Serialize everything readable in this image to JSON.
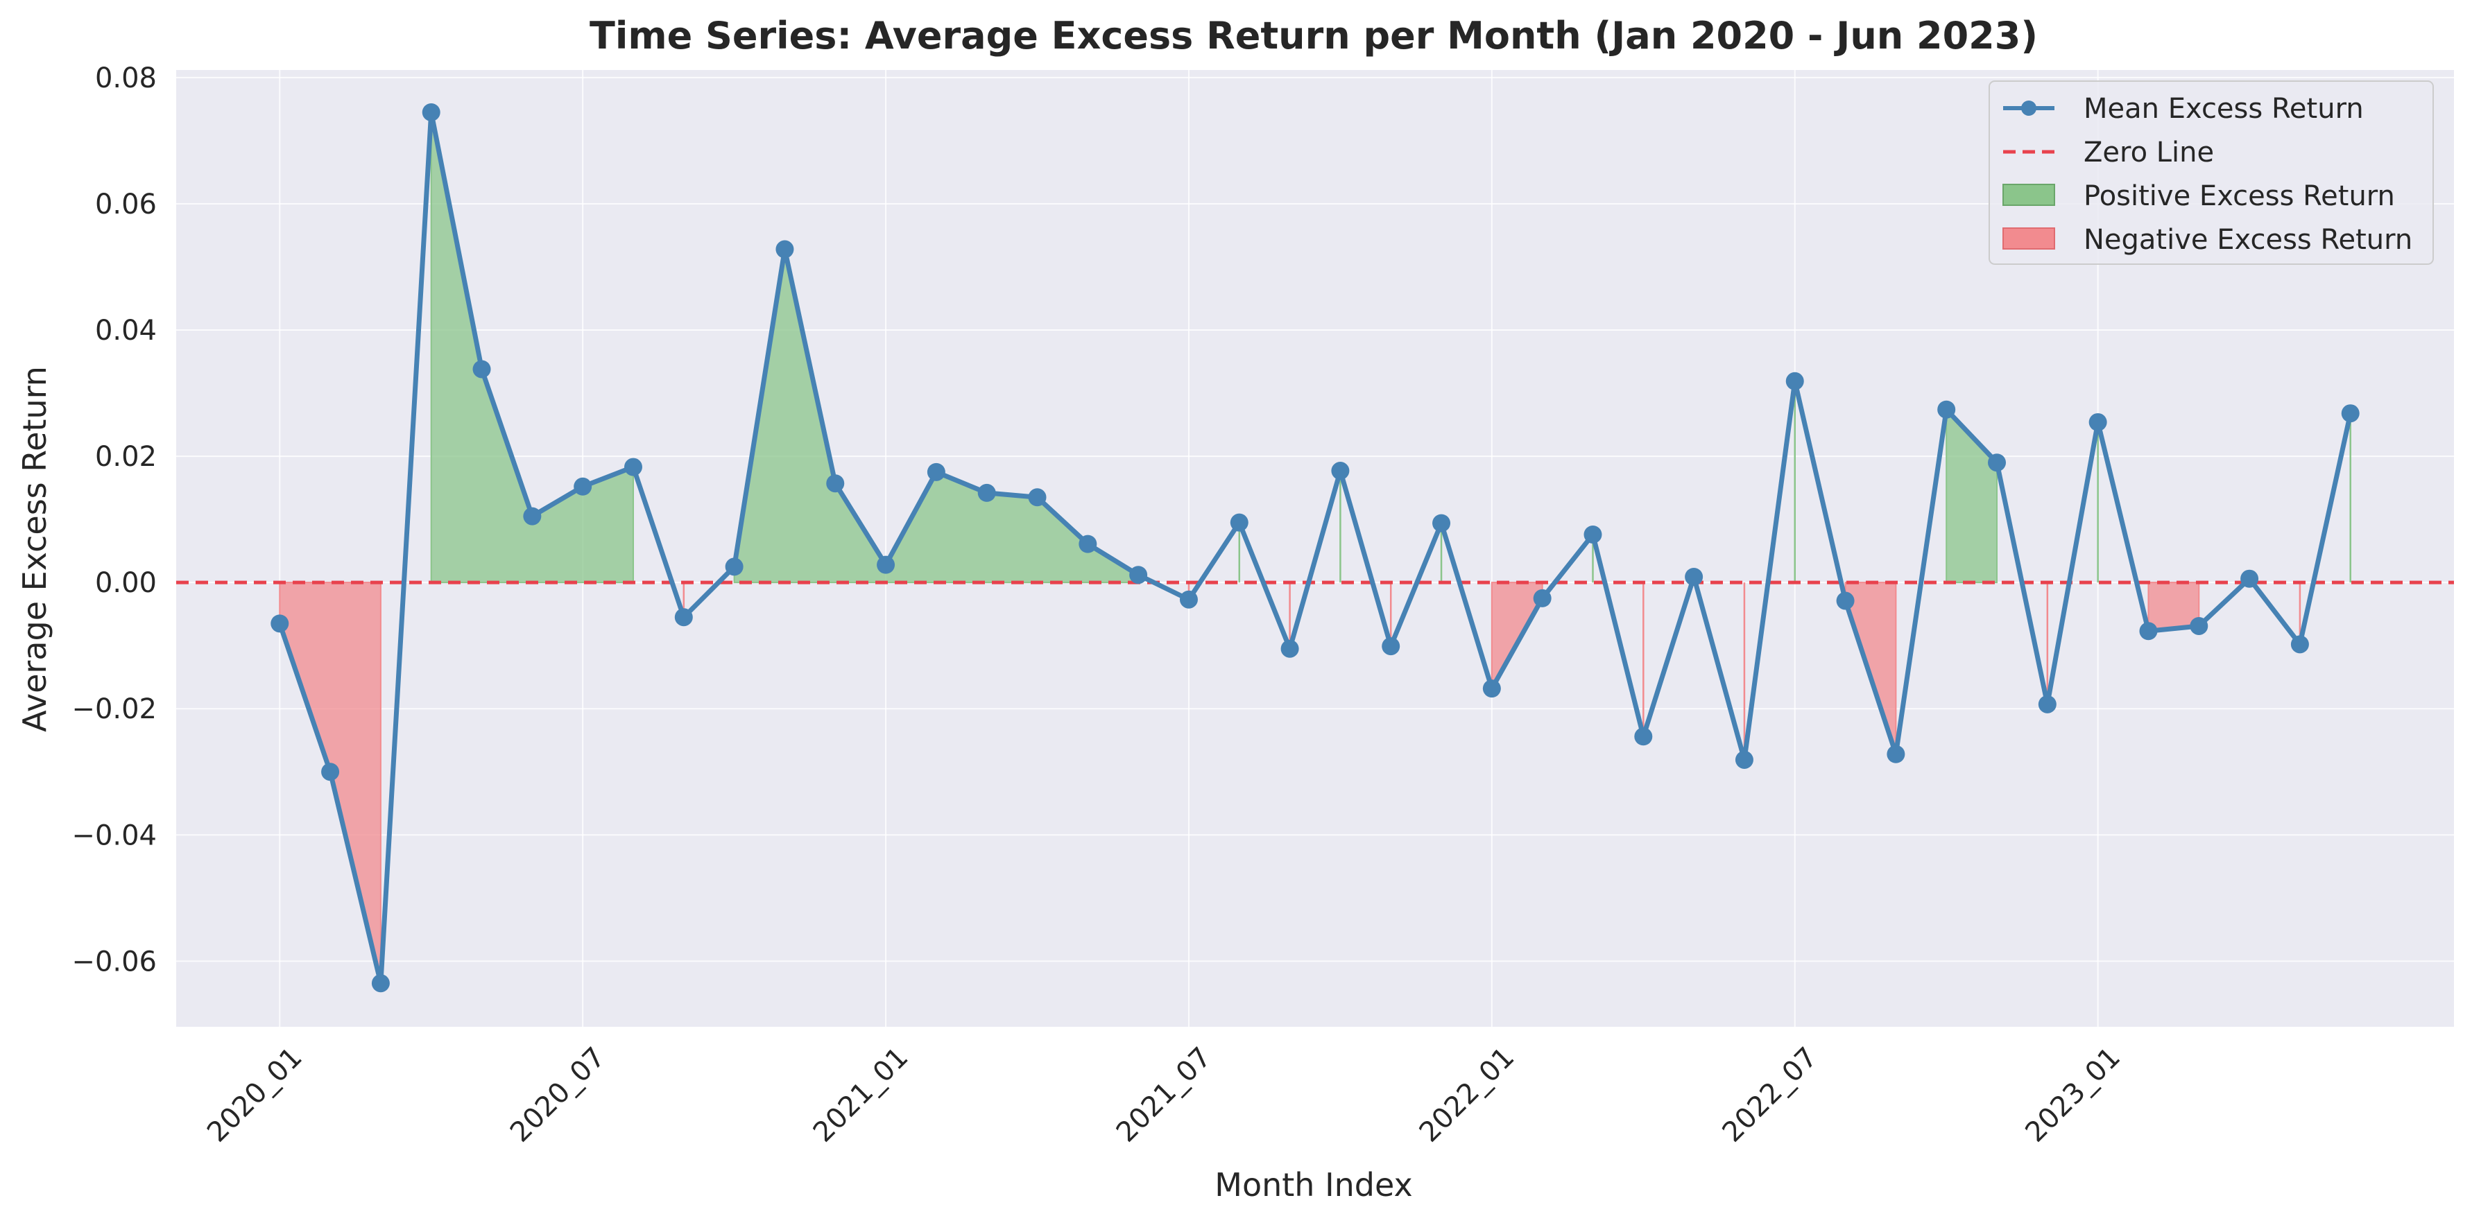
{
  "chart_data": {
    "type": "line",
    "title": "Time Series: Average Excess Return per Month (Jan 2020 - Jun 2023)",
    "xlabel": "Month Index",
    "ylabel": "Average Excess Return",
    "x_ticks": [
      {
        "index": 0,
        "label": "2020_01"
      },
      {
        "index": 6,
        "label": "2020_07"
      },
      {
        "index": 12,
        "label": "2021_01"
      },
      {
        "index": 18,
        "label": "2021_07"
      },
      {
        "index": 24,
        "label": "2022_01"
      },
      {
        "index": 30,
        "label": "2022_07"
      },
      {
        "index": 36,
        "label": "2023_01"
      }
    ],
    "y_ticks": [
      -0.06,
      -0.04,
      -0.02,
      0.0,
      0.02,
      0.04,
      0.06,
      0.08
    ],
    "y_tick_labels": [
      "−0.06",
      "−0.04",
      "−0.02",
      "0.00",
      "0.02",
      "0.04",
      "0.06",
      "0.08"
    ],
    "xlim": [
      -2.05,
      43.05
    ],
    "ylim": [
      -0.0704,
      0.0812
    ],
    "grid": true,
    "legend_position": "top-right",
    "series": [
      {
        "name": "Mean Excess Return",
        "color": "#4682b4",
        "x": [
          0,
          1,
          2,
          3,
          4,
          5,
          6,
          7,
          8,
          9,
          10,
          11,
          12,
          13,
          14,
          15,
          16,
          17,
          18,
          19,
          20,
          21,
          22,
          23,
          24,
          25,
          26,
          27,
          28,
          29,
          30,
          31,
          32,
          33,
          34,
          35,
          36,
          37,
          38,
          39,
          40,
          41
        ],
        "values": [
          -0.0065,
          -0.03,
          -0.0635,
          0.0745,
          0.0338,
          0.0105,
          0.0152,
          0.0183,
          -0.0055,
          0.0025,
          0.0528,
          0.0157,
          0.0028,
          0.0175,
          0.0142,
          0.0135,
          0.0061,
          0.0012,
          -0.0027,
          0.0095,
          -0.0105,
          0.0177,
          -0.0101,
          0.0094,
          -0.0168,
          -0.0025,
          0.0076,
          -0.0244,
          0.0009,
          -0.0281,
          0.0319,
          -0.0029,
          -0.0272,
          0.0274,
          0.019,
          -0.0193,
          0.0254,
          -0.0077,
          -0.0069,
          0.0006,
          -0.0098,
          0.0268
        ]
      },
      {
        "name": "Zero Line",
        "color": "#e8424d",
        "value": 0.0
      }
    ],
    "fills": [
      {
        "name": "Positive Excess Return",
        "color": "#7fbf7f"
      },
      {
        "name": "Negative Excess Return",
        "color": "#f08080"
      }
    ],
    "colors": {
      "background": "#eaeaf2",
      "grid": "#ffffff",
      "line": "#4682b4",
      "zero_line": "#e8424d",
      "positive_fill": "#8bc58b",
      "negative_fill": "#f28b8f"
    }
  }
}
